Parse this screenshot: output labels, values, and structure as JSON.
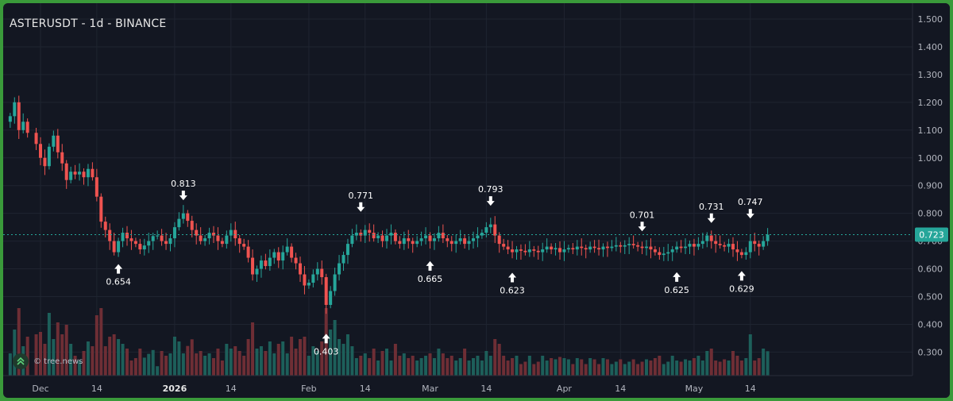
{
  "header": {
    "title": "ASTERUSDT - 1d - BINANCE"
  },
  "watermark": {
    "text": "© tree.news"
  },
  "colors": {
    "up": "#26a69a",
    "down": "#ef5350",
    "background": "#131722",
    "grid": "#1f2430",
    "axis_text": "#b2b5be",
    "last_price_bg": "#26a69a",
    "frame": "#3a9a3a"
  },
  "chart_data": {
    "type": "candlestick",
    "symbol": "ASTERUSDT",
    "interval": "1d",
    "exchange": "BINANCE",
    "grid": true,
    "y_axis": {
      "ticks": [
        1.5,
        1.4,
        1.3,
        1.2,
        1.1,
        1.0,
        0.9,
        0.8,
        0.7,
        0.6,
        0.5,
        0.4,
        0.3
      ],
      "tick_labels": [
        "1.500",
        "1.400",
        "1.300",
        "1.200",
        "1.100",
        "1.000",
        "0.900",
        "0.800",
        "0.700",
        "0.600",
        "0.500",
        "0.400",
        "0.300"
      ],
      "range": [
        0.21,
        1.53
      ]
    },
    "x_axis": {
      "ticks": [
        {
          "label": "Dec",
          "date": "2025-12-01",
          "bold": false
        },
        {
          "label": "14",
          "date": "2025-12-14",
          "bold": false
        },
        {
          "label": "2026",
          "date": "2026-01-01",
          "bold": true
        },
        {
          "label": "14",
          "date": "2026-01-14",
          "bold": false
        },
        {
          "label": "Feb",
          "date": "2026-02-01",
          "bold": false
        },
        {
          "label": "14",
          "date": "2026-02-14",
          "bold": false
        },
        {
          "label": "Mar",
          "date": "2026-03-01",
          "bold": false
        },
        {
          "label": "14",
          "date": "2026-03-14",
          "bold": false
        },
        {
          "label": "Apr",
          "date": "2026-04-01",
          "bold": false
        },
        {
          "label": "14",
          "date": "2026-04-14",
          "bold": false
        },
        {
          "label": "May",
          "date": "2026-05-01",
          "bold": false
        },
        {
          "label": "14",
          "date": "2026-05-14",
          "bold": false
        }
      ]
    },
    "last_price": {
      "value": 0.723,
      "label": "0.723"
    },
    "close_series": [
      {
        "date": "2025-11-24",
        "close": 1.15
      },
      {
        "date": "2025-11-25",
        "close": 1.2
      },
      {
        "date": "2025-11-26",
        "close": 1.1
      },
      {
        "date": "2025-11-27",
        "close": 1.13
      },
      {
        "date": "2025-11-28",
        "close": 1.09
      },
      {
        "date": "2025-11-30",
        "close": 1.05
      },
      {
        "date": "2025-12-01",
        "close": 1.0
      },
      {
        "date": "2025-12-02",
        "close": 0.97
      },
      {
        "date": "2025-12-03",
        "close": 1.04
      },
      {
        "date": "2025-12-04",
        "close": 1.08
      },
      {
        "date": "2025-12-05",
        "close": 1.02
      },
      {
        "date": "2025-12-06",
        "close": 0.98
      },
      {
        "date": "2025-12-07",
        "close": 0.92
      },
      {
        "date": "2025-12-08",
        "close": 0.95
      },
      {
        "date": "2025-12-09",
        "close": 0.94
      },
      {
        "date": "2025-12-10",
        "close": 0.95
      },
      {
        "date": "2025-12-11",
        "close": 0.93
      },
      {
        "date": "2025-12-12",
        "close": 0.96
      },
      {
        "date": "2025-12-13",
        "close": 0.93
      },
      {
        "date": "2025-12-14",
        "close": 0.86
      },
      {
        "date": "2025-12-15",
        "close": 0.77
      },
      {
        "date": "2025-12-16",
        "close": 0.74
      },
      {
        "date": "2025-12-17",
        "close": 0.7
      },
      {
        "date": "2025-12-18",
        "close": 0.66
      },
      {
        "date": "2025-12-19",
        "close": 0.7
      },
      {
        "date": "2025-12-20",
        "close": 0.73
      },
      {
        "date": "2025-12-21",
        "close": 0.71
      },
      {
        "date": "2025-12-22",
        "close": 0.7
      },
      {
        "date": "2025-12-23",
        "close": 0.69
      },
      {
        "date": "2025-12-24",
        "close": 0.67
      },
      {
        "date": "2025-12-25",
        "close": 0.684
      },
      {
        "date": "2025-12-26",
        "close": 0.7
      },
      {
        "date": "2025-12-27",
        "close": 0.718
      },
      {
        "date": "2025-12-28",
        "close": 0.72
      },
      {
        "date": "2025-12-29",
        "close": 0.7
      },
      {
        "date": "2025-12-30",
        "close": 0.69
      },
      {
        "date": "2025-12-31",
        "close": 0.71
      },
      {
        "date": "2026-01-01",
        "close": 0.75
      },
      {
        "date": "2026-01-02",
        "close": 0.78
      },
      {
        "date": "2026-01-03",
        "close": 0.8
      },
      {
        "date": "2026-01-04",
        "close": 0.773
      },
      {
        "date": "2026-01-05",
        "close": 0.74
      },
      {
        "date": "2026-01-06",
        "close": 0.72
      },
      {
        "date": "2026-01-07",
        "close": 0.7
      },
      {
        "date": "2026-01-08",
        "close": 0.71
      },
      {
        "date": "2026-01-09",
        "close": 0.73
      },
      {
        "date": "2026-01-10",
        "close": 0.72
      },
      {
        "date": "2026-01-11",
        "close": 0.7
      },
      {
        "date": "2026-01-12",
        "close": 0.69
      },
      {
        "date": "2026-01-13",
        "close": 0.72
      },
      {
        "date": "2026-01-14",
        "close": 0.74
      },
      {
        "date": "2026-01-15",
        "close": 0.71
      },
      {
        "date": "2026-01-16",
        "close": 0.69
      },
      {
        "date": "2026-01-17",
        "close": 0.68
      },
      {
        "date": "2026-01-18",
        "close": 0.64
      },
      {
        "date": "2026-01-19",
        "close": 0.58
      },
      {
        "date": "2026-01-20",
        "close": 0.6
      },
      {
        "date": "2026-01-21",
        "close": 0.63
      },
      {
        "date": "2026-01-22",
        "close": 0.61
      },
      {
        "date": "2026-01-23",
        "close": 0.64
      },
      {
        "date": "2026-01-24",
        "close": 0.66
      },
      {
        "date": "2026-01-25",
        "close": 0.63
      },
      {
        "date": "2026-01-26",
        "close": 0.66
      },
      {
        "date": "2026-01-27",
        "close": 0.68
      },
      {
        "date": "2026-01-28",
        "close": 0.64
      },
      {
        "date": "2026-01-29",
        "close": 0.62
      },
      {
        "date": "2026-01-30",
        "close": 0.58
      },
      {
        "date": "2026-01-31",
        "close": 0.54
      },
      {
        "date": "2026-02-01",
        "close": 0.55
      },
      {
        "date": "2026-02-02",
        "close": 0.58
      },
      {
        "date": "2026-02-03",
        "close": 0.6
      },
      {
        "date": "2026-02-04",
        "close": 0.57
      },
      {
        "date": "2026-02-05",
        "close": 0.47
      },
      {
        "date": "2026-02-06",
        "close": 0.52
      },
      {
        "date": "2026-02-07",
        "close": 0.58
      },
      {
        "date": "2026-02-08",
        "close": 0.62
      },
      {
        "date": "2026-02-09",
        "close": 0.65
      },
      {
        "date": "2026-02-10",
        "close": 0.69
      },
      {
        "date": "2026-02-11",
        "close": 0.72
      },
      {
        "date": "2026-02-12",
        "close": 0.73
      },
      {
        "date": "2026-02-13",
        "close": 0.72
      },
      {
        "date": "2026-02-14",
        "close": 0.74
      },
      {
        "date": "2026-02-15",
        "close": 0.73
      },
      {
        "date": "2026-02-16",
        "close": 0.71
      },
      {
        "date": "2026-02-17",
        "close": 0.72
      },
      {
        "date": "2026-02-18",
        "close": 0.7
      },
      {
        "date": "2026-02-19",
        "close": 0.72
      },
      {
        "date": "2026-02-20",
        "close": 0.73
      },
      {
        "date": "2026-02-21",
        "close": 0.7
      },
      {
        "date": "2026-02-22",
        "close": 0.69
      },
      {
        "date": "2026-02-23",
        "close": 0.71
      },
      {
        "date": "2026-02-24",
        "close": 0.7
      },
      {
        "date": "2026-02-25",
        "close": 0.69
      },
      {
        "date": "2026-02-26",
        "close": 0.7
      },
      {
        "date": "2026-02-27",
        "close": 0.71
      },
      {
        "date": "2026-02-28",
        "close": 0.72
      },
      {
        "date": "2026-03-01",
        "close": 0.7
      },
      {
        "date": "2026-03-02",
        "close": 0.71
      },
      {
        "date": "2026-03-03",
        "close": 0.73
      },
      {
        "date": "2026-03-04",
        "close": 0.71
      },
      {
        "date": "2026-03-05",
        "close": 0.7
      },
      {
        "date": "2026-03-06",
        "close": 0.69
      },
      {
        "date": "2026-03-07",
        "close": 0.7
      },
      {
        "date": "2026-03-08",
        "close": 0.71
      },
      {
        "date": "2026-03-09",
        "close": 0.69
      },
      {
        "date": "2026-03-10",
        "close": 0.7
      },
      {
        "date": "2026-03-11",
        "close": 0.71
      },
      {
        "date": "2026-03-12",
        "close": 0.72
      },
      {
        "date": "2026-03-13",
        "close": 0.73
      },
      {
        "date": "2026-03-14",
        "close": 0.75
      },
      {
        "date": "2026-03-15",
        "close": 0.76
      },
      {
        "date": "2026-03-16",
        "close": 0.72
      },
      {
        "date": "2026-03-17",
        "close": 0.69
      },
      {
        "date": "2026-03-18",
        "close": 0.68
      },
      {
        "date": "2026-03-19",
        "close": 0.67
      },
      {
        "date": "2026-03-20",
        "close": 0.66
      },
      {
        "date": "2026-03-21",
        "close": 0.67
      },
      {
        "date": "2026-03-22",
        "close": 0.665
      },
      {
        "date": "2026-03-23",
        "close": 0.66
      },
      {
        "date": "2026-03-24",
        "close": 0.67
      },
      {
        "date": "2026-03-25",
        "close": 0.665
      },
      {
        "date": "2026-03-26",
        "close": 0.66
      },
      {
        "date": "2026-03-27",
        "close": 0.67
      },
      {
        "date": "2026-03-28",
        "close": 0.68
      },
      {
        "date": "2026-03-29",
        "close": 0.67
      },
      {
        "date": "2026-03-30",
        "close": 0.675
      },
      {
        "date": "2026-03-31",
        "close": 0.66
      },
      {
        "date": "2026-04-01",
        "close": 0.67
      },
      {
        "date": "2026-04-02",
        "close": 0.675
      },
      {
        "date": "2026-04-03",
        "close": 0.67
      },
      {
        "date": "2026-04-04",
        "close": 0.68
      },
      {
        "date": "2026-04-05",
        "close": 0.675
      },
      {
        "date": "2026-04-06",
        "close": 0.67
      },
      {
        "date": "2026-04-07",
        "close": 0.68
      },
      {
        "date": "2026-04-08",
        "close": 0.675
      },
      {
        "date": "2026-04-09",
        "close": 0.67
      },
      {
        "date": "2026-04-10",
        "close": 0.68
      },
      {
        "date": "2026-04-11",
        "close": 0.675
      },
      {
        "date": "2026-04-12",
        "close": 0.68
      },
      {
        "date": "2026-04-13",
        "close": 0.685
      },
      {
        "date": "2026-04-14",
        "close": 0.68
      },
      {
        "date": "2026-04-15",
        "close": 0.685
      },
      {
        "date": "2026-04-16",
        "close": 0.69
      },
      {
        "date": "2026-04-17",
        "close": 0.685
      },
      {
        "date": "2026-04-18",
        "close": 0.68
      },
      {
        "date": "2026-04-19",
        "close": 0.675
      },
      {
        "date": "2026-04-20",
        "close": 0.68
      },
      {
        "date": "2026-04-21",
        "close": 0.67
      },
      {
        "date": "2026-04-22",
        "close": 0.66
      },
      {
        "date": "2026-04-23",
        "close": 0.65
      },
      {
        "date": "2026-04-24",
        "close": 0.655
      },
      {
        "date": "2026-04-25",
        "close": 0.66
      },
      {
        "date": "2026-04-26",
        "close": 0.67
      },
      {
        "date": "2026-04-27",
        "close": 0.68
      },
      {
        "date": "2026-04-28",
        "close": 0.675
      },
      {
        "date": "2026-04-29",
        "close": 0.68
      },
      {
        "date": "2026-04-30",
        "close": 0.69
      },
      {
        "date": "2026-05-01",
        "close": 0.68
      },
      {
        "date": "2026-05-02",
        "close": 0.69
      },
      {
        "date": "2026-05-03",
        "close": 0.7
      },
      {
        "date": "2026-05-04",
        "close": 0.72
      },
      {
        "date": "2026-05-05",
        "close": 0.7
      },
      {
        "date": "2026-05-06",
        "close": 0.69
      },
      {
        "date": "2026-05-07",
        "close": 0.685
      },
      {
        "date": "2026-05-08",
        "close": 0.68
      },
      {
        "date": "2026-05-09",
        "close": 0.69
      },
      {
        "date": "2026-05-10",
        "close": 0.67
      },
      {
        "date": "2026-05-11",
        "close": 0.66
      },
      {
        "date": "2026-05-12",
        "close": 0.65
      },
      {
        "date": "2026-05-13",
        "close": 0.66
      },
      {
        "date": "2026-05-14",
        "close": 0.7
      },
      {
        "date": "2026-05-15",
        "close": 0.69
      },
      {
        "date": "2026-05-16",
        "close": 0.68
      },
      {
        "date": "2026-05-17",
        "close": 0.7
      },
      {
        "date": "2026-05-18",
        "close": 0.723
      }
    ],
    "annotations": [
      {
        "label": "0.654",
        "value": 0.654,
        "date": "2025-12-19",
        "type": "low"
      },
      {
        "label": "0.813",
        "value": 0.813,
        "date": "2026-01-03",
        "type": "high"
      },
      {
        "label": "0.403",
        "value": 0.403,
        "date": "2026-02-05",
        "type": "low"
      },
      {
        "label": "0.771",
        "value": 0.771,
        "date": "2026-02-13",
        "type": "high"
      },
      {
        "label": "0.665",
        "value": 0.665,
        "date": "2026-03-01",
        "type": "low"
      },
      {
        "label": "0.793",
        "value": 0.793,
        "date": "2026-03-15",
        "type": "high"
      },
      {
        "label": "0.623",
        "value": 0.623,
        "date": "2026-03-20",
        "type": "low"
      },
      {
        "label": "0.701",
        "value": 0.701,
        "date": "2026-04-19",
        "type": "high"
      },
      {
        "label": "0.625",
        "value": 0.625,
        "date": "2026-04-27",
        "type": "low"
      },
      {
        "label": "0.731",
        "value": 0.731,
        "date": "2026-05-05",
        "type": "high"
      },
      {
        "label": "0.629",
        "value": 0.629,
        "date": "2026-05-12",
        "type": "low"
      },
      {
        "label": "0.747",
        "value": 0.747,
        "date": "2026-05-14",
        "type": "high"
      }
    ]
  }
}
